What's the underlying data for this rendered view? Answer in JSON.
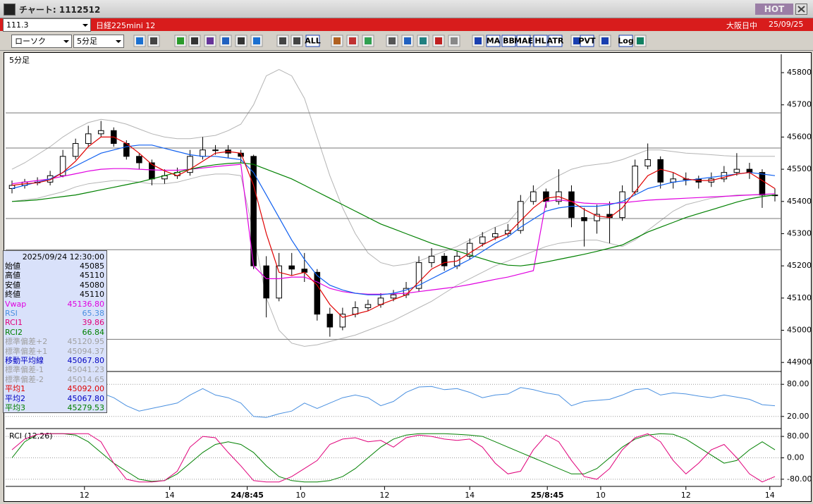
{
  "header": {
    "title": "チャート: 1112512",
    "hot": "HOT",
    "code": "111.3",
    "name": "日経225mini 12",
    "session": "大阪日中",
    "date": "25/09/25"
  },
  "toolbar": {
    "chart_style": "ローソク",
    "interval": "5分足",
    "buttons": [
      "ALL",
      "MA",
      "BB",
      "MAE",
      "HL",
      "ATR",
      "PVT",
      "Log"
    ]
  },
  "info_panel": {
    "datetime": "2025/09/24 12:30:00",
    "rows": [
      {
        "label": "始値",
        "value": "45085",
        "color": "#000000"
      },
      {
        "label": "高値",
        "value": "45110",
        "color": "#000000"
      },
      {
        "label": "安値",
        "value": "45080",
        "color": "#000000"
      },
      {
        "label": "終値",
        "value": "45110",
        "color": "#000000"
      },
      {
        "label": "Vwap",
        "value": "45136.80",
        "color": "#e000e0"
      },
      {
        "label": "RSI",
        "value": "65.38",
        "color": "#4a90e0"
      },
      {
        "label": "RCI1",
        "value": "39.86",
        "color": "#e0007a"
      },
      {
        "label": "RCI2",
        "value": "66.84",
        "color": "#008000"
      },
      {
        "label": "標準偏差+2",
        "value": "45120.95",
        "color": "#a0a0a0"
      },
      {
        "label": "標準偏差+1",
        "value": "45094.37",
        "color": "#a0a0a0"
      },
      {
        "label": "移動平均線",
        "value": "45067.80",
        "color": "#0000c0"
      },
      {
        "label": "標準偏差-1",
        "value": "45041.23",
        "color": "#a0a0a0"
      },
      {
        "label": "標準偏差-2",
        "value": "45014.65",
        "color": "#a0a0a0"
      },
      {
        "label": "平均1",
        "value": "45092.00",
        "color": "#e00000"
      },
      {
        "label": "平均2",
        "value": "45067.80",
        "color": "#0000c0"
      },
      {
        "label": "平均3",
        "value": "45279.53",
        "color": "#008000"
      }
    ]
  },
  "chart_data": [
    {
      "type": "candlestick",
      "title": "5分足",
      "xlim": [
        -0.5,
        60.5
      ],
      "xticks": [
        {
          "value": 5.7,
          "label": "12"
        },
        {
          "value": 12.4,
          "label": "14"
        },
        {
          "value": 18.5,
          "label": "24/8:45"
        },
        {
          "value": 22.7,
          "label": "10"
        },
        {
          "value": 29.3,
          "label": "12"
        },
        {
          "value": 36,
          "label": "14"
        },
        {
          "value": 42.1,
          "label": "25/8:45"
        },
        {
          "value": 46.3,
          "label": "10"
        },
        {
          "value": 53,
          "label": "12"
        },
        {
          "value": 59.6,
          "label": "14"
        }
      ],
      "ylim": [
        44872,
        45857
      ],
      "yticks": [
        44900,
        45000,
        45100,
        45200,
        45300,
        45400,
        45500,
        45600,
        45700,
        45800
      ],
      "hlines": [
        45675,
        45566,
        45347,
        45250,
        44972
      ],
      "up_color": "#ffffff",
      "down_color": "#000000",
      "open": [
        45440,
        45450,
        45460,
        45460,
        45480,
        45540,
        45580,
        45610,
        45620,
        45580,
        45540,
        45520,
        45470,
        45480,
        45490,
        45540,
        45560,
        45560,
        45550,
        45540,
        45200,
        45100,
        45200,
        45190,
        45180,
        45050,
        45010,
        45050,
        45070,
        45080,
        45100,
        45110,
        45130,
        45210,
        45230,
        45200,
        45230,
        45270,
        45290,
        45300,
        45310,
        45400,
        45430,
        45400,
        45430,
        45350,
        45340,
        45360,
        45350,
        45430,
        45510,
        45530,
        45460,
        45470,
        45470,
        45460,
        45470,
        45490,
        45500,
        45490,
        45420
      ],
      "high": [
        45465,
        45470,
        45475,
        45495,
        45560,
        45595,
        45635,
        45650,
        45630,
        45590,
        45550,
        45530,
        45500,
        45505,
        45560,
        45600,
        45575,
        45575,
        45560,
        45545,
        45230,
        45240,
        45240,
        45240,
        45190,
        45070,
        45070,
        45090,
        45095,
        45115,
        45125,
        45150,
        45230,
        45255,
        45240,
        45245,
        45285,
        45305,
        45320,
        45330,
        45420,
        45450,
        45440,
        45500,
        45450,
        45380,
        45390,
        45400,
        45450,
        45530,
        45580,
        45540,
        45490,
        45490,
        45480,
        45490,
        45510,
        45550,
        45520,
        45500,
        45440
      ],
      "low": [
        45425,
        45440,
        45450,
        45450,
        45475,
        45530,
        45570,
        45600,
        45570,
        45530,
        45500,
        45450,
        45455,
        45470,
        45480,
        45530,
        45545,
        45535,
        45520,
        45190,
        45040,
        45090,
        45170,
        45150,
        45030,
        44980,
        45000,
        45040,
        45060,
        45070,
        45090,
        45100,
        45120,
        45195,
        45185,
        45190,
        45220,
        45260,
        45280,
        45290,
        45300,
        45390,
        45380,
        45390,
        45320,
        45260,
        45300,
        45270,
        45340,
        45420,
        45500,
        45440,
        45440,
        45450,
        45440,
        45445,
        45460,
        45480,
        45470,
        45380,
        45400
      ],
      "close": [
        45450,
        45460,
        45460,
        45480,
        45540,
        45580,
        45610,
        45620,
        45580,
        45540,
        45520,
        45470,
        45480,
        45490,
        45540,
        45560,
        45560,
        45550,
        45540,
        45200,
        45100,
        45200,
        45190,
        45180,
        45050,
        45010,
        45050,
        45070,
        45080,
        45100,
        45110,
        45130,
        45210,
        45230,
        45200,
        45230,
        45270,
        45290,
        45300,
        45310,
        45400,
        45430,
        45400,
        45430,
        45350,
        45340,
        45360,
        45350,
        45430,
        45510,
        45530,
        45460,
        45470,
        45470,
        45460,
        45470,
        45490,
        45500,
        45490,
        45420,
        45420
      ],
      "overlays": [
        {
          "color": "#b4b4b4",
          "values": [
            45500,
            45520,
            45545,
            45570,
            45600,
            45625,
            45645,
            45655,
            45650,
            45640,
            45625,
            45610,
            45600,
            45595,
            45595,
            45600,
            45605,
            45620,
            45640,
            45700,
            45790,
            45810,
            45790,
            45720,
            45600,
            45480,
            45380,
            45300,
            45240,
            45210,
            45200,
            45205,
            45215,
            45230,
            45245,
            45260,
            45280,
            45300,
            45320,
            45335,
            45380,
            45430,
            45460,
            45480,
            45500,
            45510,
            45515,
            45520,
            45530,
            45545,
            45560,
            45560,
            45555,
            45550,
            45548,
            45545,
            45542,
            45540,
            45540,
            45540,
            45540
          ]
        },
        {
          "color": "#b4b4b4",
          "values": [
            45400,
            45405,
            45410,
            45420,
            45430,
            45445,
            45455,
            45460,
            45465,
            45465,
            45460,
            45455,
            45455,
            45460,
            45470,
            45480,
            45485,
            45485,
            45480,
            45300,
            45100,
            45000,
            44960,
            44950,
            44955,
            44965,
            44975,
            44985,
            45000,
            45015,
            45030,
            45050,
            45070,
            45090,
            45115,
            45140,
            45160,
            45180,
            45200,
            45215,
            45230,
            45245,
            45260,
            45270,
            45275,
            45280,
            45280,
            45270,
            45260,
            45280,
            45310,
            45340,
            45370,
            45390,
            45400,
            45410,
            45415,
            45420,
            45420,
            45420,
            45420
          ]
        },
        {
          "color": "#e000e0",
          "values": [
            45455,
            45460,
            45465,
            45470,
            45478,
            45486,
            45494,
            45500,
            45502,
            45502,
            45500,
            45498,
            45497,
            45497,
            45500,
            45504,
            45508,
            45512,
            45515,
            45200,
            45160,
            45160,
            45165,
            45165,
            45150,
            45130,
            45120,
            45115,
            45112,
            45112,
            45113,
            45115,
            45120,
            45125,
            45130,
            45135,
            45142,
            45150,
            45158,
            45165,
            45175,
            45185,
            45400,
            45405,
            45400,
            45395,
            45393,
            45393,
            45396,
            45400,
            45404,
            45406,
            45408,
            45410,
            45412,
            45414,
            45416,
            45418,
            45420,
            45422,
            45424
          ]
        },
        {
          "color": "#008000",
          "values": [
            45400,
            45402,
            45405,
            45410,
            45415,
            45420,
            45428,
            45436,
            45444,
            45452,
            45460,
            45470,
            45480,
            45490,
            45500,
            45508,
            45514,
            45518,
            45520,
            45515,
            45500,
            45485,
            45470,
            45450,
            45430,
            45410,
            45390,
            45370,
            45350,
            45330,
            45315,
            45300,
            45285,
            45270,
            45258,
            45246,
            45234,
            45222,
            45210,
            45202,
            45200,
            45205,
            45212,
            45220,
            45228,
            45236,
            45245,
            45255,
            45265,
            45285,
            45305,
            45320,
            45335,
            45350,
            45362,
            45374,
            45386,
            45398,
            45408,
            45415,
            45420
          ]
        },
        {
          "color": "#1060f0",
          "values": [
            45440,
            45450,
            45460,
            45470,
            45490,
            45510,
            45530,
            45550,
            45560,
            45570,
            45575,
            45575,
            45565,
            45555,
            45545,
            45540,
            45540,
            45535,
            45530,
            45490,
            45420,
            45350,
            45280,
            45220,
            45170,
            45140,
            45125,
            45115,
            45110,
            45110,
            45115,
            45125,
            45140,
            45160,
            45180,
            45200,
            45220,
            45245,
            45270,
            45290,
            45320,
            45345,
            45370,
            45380,
            45385,
            45385,
            45385,
            45390,
            45400,
            45420,
            45440,
            45450,
            45460,
            45465,
            45470,
            45475,
            45480,
            45485,
            45490,
            45485,
            45480
          ]
        },
        {
          "color": "#e00000",
          "values": [
            45450,
            45455,
            45458,
            45467,
            45490,
            45525,
            45570,
            45600,
            45600,
            45580,
            45550,
            45515,
            45495,
            45480,
            45500,
            45525,
            45550,
            45555,
            45550,
            45450,
            45300,
            45180,
            45170,
            45180,
            45140,
            45080,
            45040,
            45050,
            45060,
            45080,
            45095,
            45110,
            45150,
            45190,
            45210,
            45215,
            45240,
            45265,
            45285,
            45300,
            45340,
            45380,
            45410,
            45415,
            45400,
            45375,
            45355,
            45350,
            45380,
            45430,
            45480,
            45500,
            45490,
            45470,
            45465,
            45465,
            45475,
            45485,
            45490,
            45465,
            45440
          ]
        }
      ]
    },
    {
      "type": "line",
      "ylim": [
        -2.7,
        104
      ],
      "grid": true,
      "yticks": [
        {
          "value": 80,
          "label": "80.00"
        },
        {
          "value": 20,
          "label": "20.00"
        }
      ],
      "series": [
        {
          "color": "#4a90e0",
          "values": [
            55,
            48,
            45,
            50,
            62,
            58,
            70,
            64,
            55,
            40,
            30,
            35,
            40,
            45,
            60,
            72,
            60,
            55,
            45,
            20,
            18,
            25,
            30,
            45,
            35,
            45,
            55,
            60,
            55,
            40,
            48,
            65,
            75,
            76,
            70,
            72,
            65,
            55,
            60,
            62,
            74,
            70,
            64,
            60,
            40,
            48,
            50,
            52,
            60,
            70,
            72,
            60,
            64,
            62,
            58,
            55,
            60,
            56,
            52,
            42,
            40
          ]
        }
      ]
    },
    {
      "type": "line",
      "title": "RCI (12,26)",
      "ylim": [
        -106.7,
        109.3
      ],
      "grid": true,
      "yticks": [
        {
          "value": 80,
          "label": "80.00"
        },
        {
          "value": 0,
          "label": "0.00"
        },
        {
          "value": -80,
          "label": "-80.00"
        }
      ],
      "series": [
        {
          "color": "#008000",
          "values": [
            0,
            60,
            88,
            90,
            90,
            85,
            60,
            20,
            -20,
            -50,
            -80,
            -88,
            -85,
            -60,
            -20,
            20,
            50,
            60,
            50,
            20,
            -30,
            -70,
            -85,
            -90,
            -90,
            -85,
            -70,
            -40,
            0,
            40,
            70,
            85,
            90,
            90,
            90,
            88,
            85,
            80,
            60,
            40,
            20,
            0,
            -20,
            -40,
            -60,
            -60,
            -40,
            0,
            40,
            70,
            85,
            90,
            88,
            70,
            40,
            10,
            -20,
            -10,
            30,
            60,
            30
          ]
        },
        {
          "color": "#e0007a",
          "values": [
            30,
            70,
            88,
            90,
            90,
            90,
            90,
            60,
            -20,
            -80,
            -90,
            -90,
            -85,
            -50,
            40,
            80,
            75,
            20,
            -30,
            -85,
            -90,
            -90,
            -70,
            -40,
            -10,
            50,
            70,
            75,
            60,
            65,
            40,
            75,
            85,
            80,
            70,
            65,
            70,
            40,
            -20,
            -60,
            -50,
            30,
            85,
            60,
            -10,
            -70,
            -80,
            -40,
            30,
            75,
            90,
            60,
            -10,
            -60,
            -20,
            30,
            50,
            0,
            -60,
            -90,
            -70
          ]
        }
      ]
    }
  ]
}
